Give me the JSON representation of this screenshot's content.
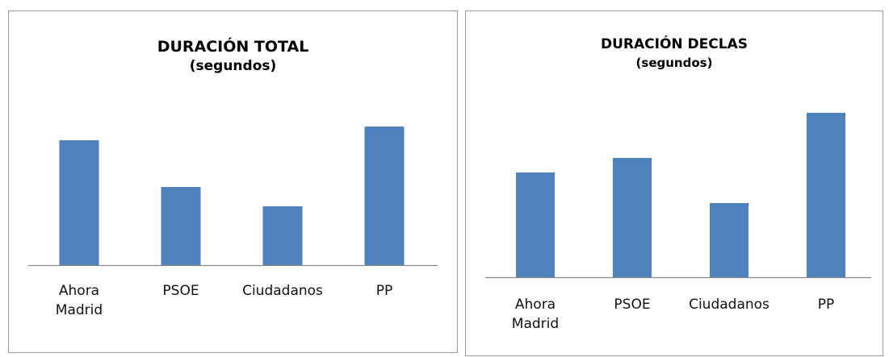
{
  "chart_data": [
    {
      "type": "bar",
      "title": "DURACIÓN TOTAL",
      "subtitle": "(segundos)",
      "categories": [
        "Ahora Madrid",
        "PSOE",
        "Ciudadanos",
        "PP"
      ],
      "values": [
        155,
        97,
        73,
        172
      ],
      "ylim": [
        0,
        200
      ],
      "grid": false,
      "legend": "none",
      "bar_color": "#4f81bd",
      "axis_color": "#8c8c8c"
    },
    {
      "type": "bar",
      "title": "DURACIÓN DECLAS",
      "subtitle": "(segundos)",
      "categories": [
        "Ahora Madrid",
        "PSOE",
        "Ciudadanos",
        "PP"
      ],
      "values": [
        130,
        148,
        92,
        204
      ],
      "ylim": [
        0,
        220
      ],
      "grid": false,
      "legend": "none",
      "bar_color": "#4f81bd",
      "axis_color": "#8c8c8c"
    }
  ]
}
